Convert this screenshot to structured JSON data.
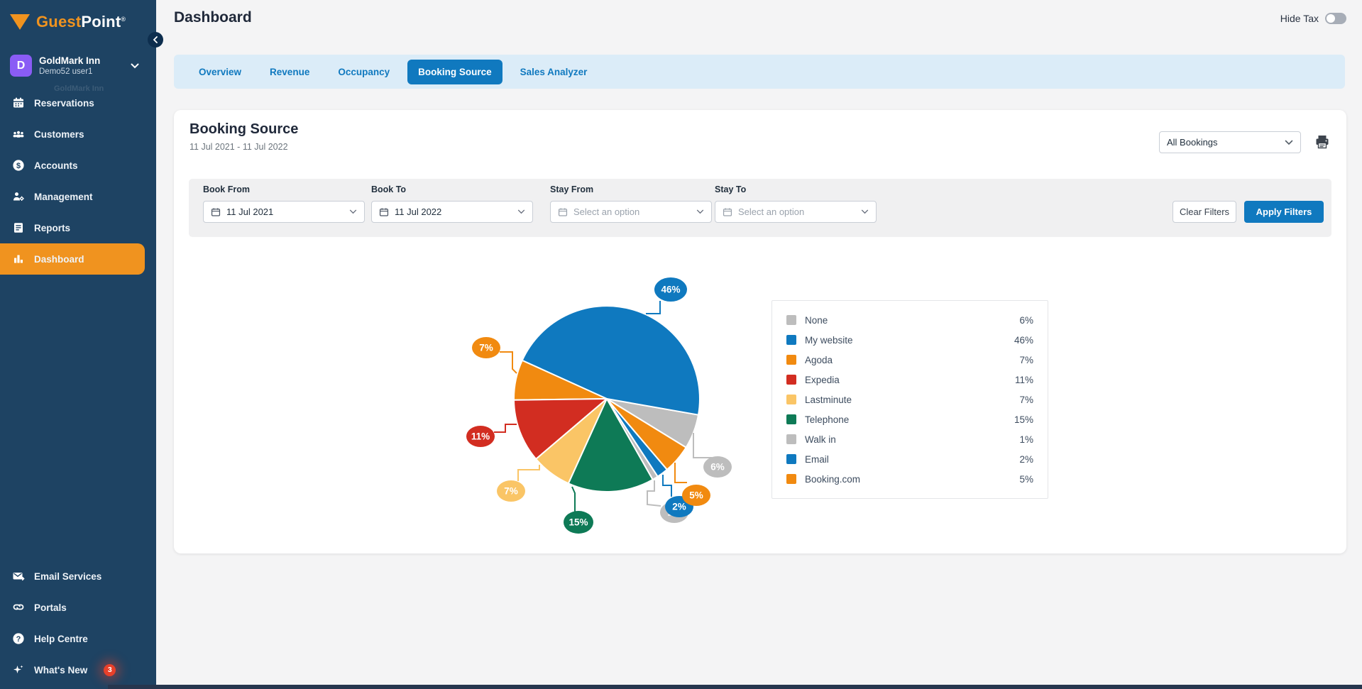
{
  "brand": {
    "name_part1": "Guest",
    "name_part2": "Point",
    "mark": "®"
  },
  "sidebar": {
    "user": {
      "initial": "D",
      "property": "GoldMark Inn",
      "username": "Demo52 user1",
      "ghost_text": "GoldMark Inn"
    },
    "items": [
      {
        "label": "Reservations"
      },
      {
        "label": "Customers"
      },
      {
        "label": "Accounts"
      },
      {
        "label": "Management"
      },
      {
        "label": "Reports"
      },
      {
        "label": "Dashboard",
        "active": true
      }
    ],
    "footer": [
      {
        "label": "Email Services"
      },
      {
        "label": "Portals"
      },
      {
        "label": "Help Centre"
      },
      {
        "label": "What's New",
        "badge": "3"
      }
    ]
  },
  "header": {
    "title": "Dashboard",
    "hide_tax_label": "Hide Tax",
    "hide_tax_on": false
  },
  "tabs": [
    {
      "label": "Overview"
    },
    {
      "label": "Revenue"
    },
    {
      "label": "Occupancy"
    },
    {
      "label": "Booking Source",
      "active": true
    },
    {
      "label": "Sales Analyzer"
    }
  ],
  "panel": {
    "title": "Booking Source",
    "date_range": "11 Jul 2021 - 11 Jul 2022",
    "bookings_filter_value": "All Bookings"
  },
  "filter_bar": {
    "fields": [
      {
        "label": "Book From",
        "value": "11 Jul 2021"
      },
      {
        "label": "Book To",
        "value": "11 Jul 2022"
      },
      {
        "label": "Stay From",
        "placeholder": "Select an option"
      },
      {
        "label": "Stay To",
        "placeholder": "Select an option"
      }
    ],
    "clear_button": "Clear Filters",
    "apply_button": "Apply Filters"
  },
  "chart_data": {
    "type": "pie",
    "title": "Booking Source",
    "legend_position": "right",
    "value_suffix": "%",
    "start_angle_cw_from_top": 121.6,
    "direction": "counterclockwise",
    "series": [
      {
        "label": "None",
        "value": 6,
        "color": "#bdbdbd"
      },
      {
        "label": "My website",
        "value": 46,
        "color": "#0f79bf"
      },
      {
        "label": "Agoda",
        "value": 7,
        "color": "#f18a10"
      },
      {
        "label": "Expedia",
        "value": 11,
        "color": "#d22d21"
      },
      {
        "label": "Lastminute",
        "value": 7,
        "color": "#fac566"
      },
      {
        "label": "Telephone",
        "value": 15,
        "color": "#0e7a56"
      },
      {
        "label": "Walk in",
        "value": 1,
        "color": "#bdbdbd"
      },
      {
        "label": "Email",
        "value": 2,
        "color": "#0f79bf"
      },
      {
        "label": "Booking.com",
        "value": 5,
        "color": "#f18a10"
      }
    ]
  },
  "colors": {
    "accent_orange": "#f0931f",
    "accent_blue": "#1079bf",
    "sidebar_bg": "#1e4363"
  }
}
